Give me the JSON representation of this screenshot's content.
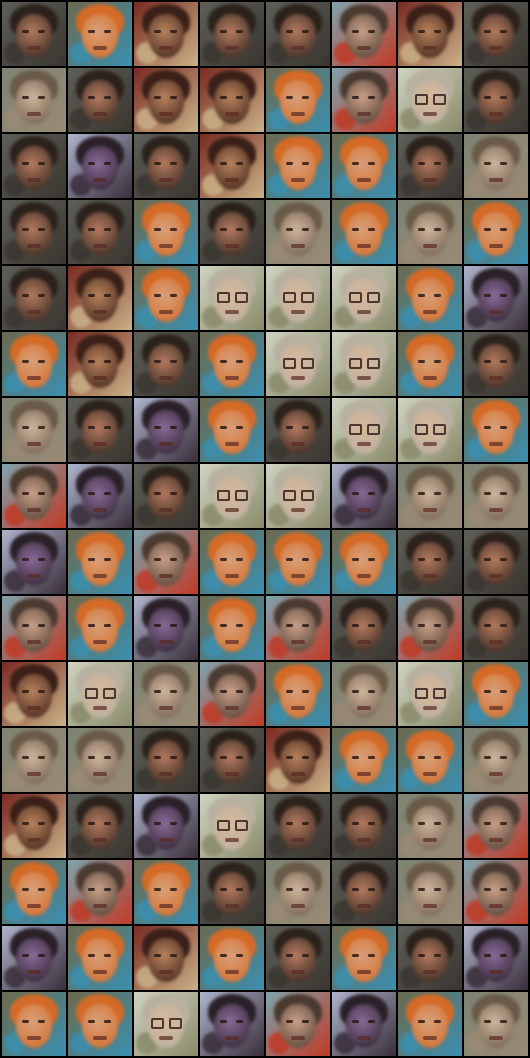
{
  "grid": {
    "rows": 16,
    "cols": 8,
    "types": [
      "A",
      "B",
      "R",
      "A",
      "A",
      "C",
      "R",
      "A",
      "D",
      "A",
      "R",
      "R",
      "B",
      "C",
      "G",
      "A",
      "A",
      "P",
      "A",
      "R",
      "B",
      "B",
      "A",
      "D",
      "A",
      "A",
      "B",
      "A",
      "D",
      "B",
      "D",
      "B",
      "A",
      "R",
      "B",
      "G",
      "G",
      "G",
      "B",
      "P",
      "B",
      "R",
      "A",
      "B",
      "G",
      "G",
      "B",
      "A",
      "D",
      "A",
      "P",
      "B",
      "A",
      "G",
      "G",
      "B",
      "C",
      "P",
      "A",
      "G",
      "G",
      "P",
      "D",
      "D",
      "P",
      "B",
      "C",
      "B",
      "B",
      "B",
      "A",
      "A",
      "C",
      "B",
      "P",
      "B",
      "C",
      "A",
      "C",
      "A",
      "R",
      "G",
      "D",
      "C",
      "B",
      "D",
      "G",
      "B",
      "D",
      "D",
      "A",
      "A",
      "R",
      "B",
      "B",
      "D",
      "R",
      "A",
      "P",
      "G",
      "A",
      "A",
      "D",
      "C",
      "B",
      "C",
      "B",
      "A",
      "D",
      "A",
      "D",
      "C",
      "P",
      "B",
      "R",
      "B",
      "A",
      "B",
      "A",
      "P",
      "B",
      "B",
      "G",
      "P",
      "C",
      "P",
      "B",
      "D"
    ]
  },
  "palette": {
    "A": {
      "bg": "#5d5f58",
      "hair": "#2c221c",
      "face": "#b47a5e",
      "accent": "#3a3530",
      "glasses": false
    },
    "B": {
      "bg": "#6b6a4e",
      "hair": "#d46a26",
      "face": "#d8a07a",
      "accent": "#3a8fb0",
      "glasses": false
    },
    "R": {
      "bg": "#7a2a22",
      "hair": "#3a2018",
      "face": "#b8825c",
      "accent": "#c9b187",
      "glasses": false
    },
    "C": {
      "bg": "#7fa3ad",
      "hair": "#4a3a30",
      "face": "#c9a088",
      "accent": "#c03a26",
      "glasses": false
    },
    "D": {
      "bg": "#7d8473",
      "hair": "#6a5a48",
      "face": "#cfb49c",
      "accent": "#9a8a74",
      "glasses": false
    },
    "G": {
      "bg": "#cfd3c2",
      "hair": "#b8b0a0",
      "face": "#d8b89c",
      "accent": "#8a8b6a",
      "glasses": true
    },
    "P": {
      "bg": "#aeb4cc",
      "hair": "#2a2028",
      "face": "#8a6a98",
      "accent": "#3a2e3a",
      "glasses": false
    }
  }
}
